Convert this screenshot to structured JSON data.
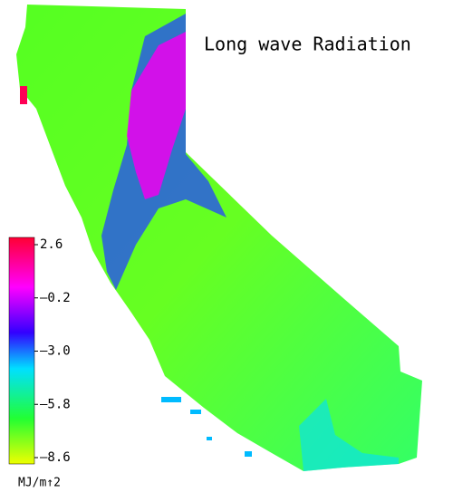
{
  "title": "Long wave Radiation",
  "colorbar": {
    "lim": [
      -8.6,
      2.6
    ],
    "ticks": [
      2.6,
      {
        "value": -0.2,
        "label": "–0.2"
      },
      {
        "value": -3,
        "label": "–3.0"
      },
      {
        "value": -5.8,
        "label": "–5.8"
      },
      {
        "value": -8.6,
        "label": "–8.6"
      }
    ],
    "unit": "MJ/m↑2"
  }
}
